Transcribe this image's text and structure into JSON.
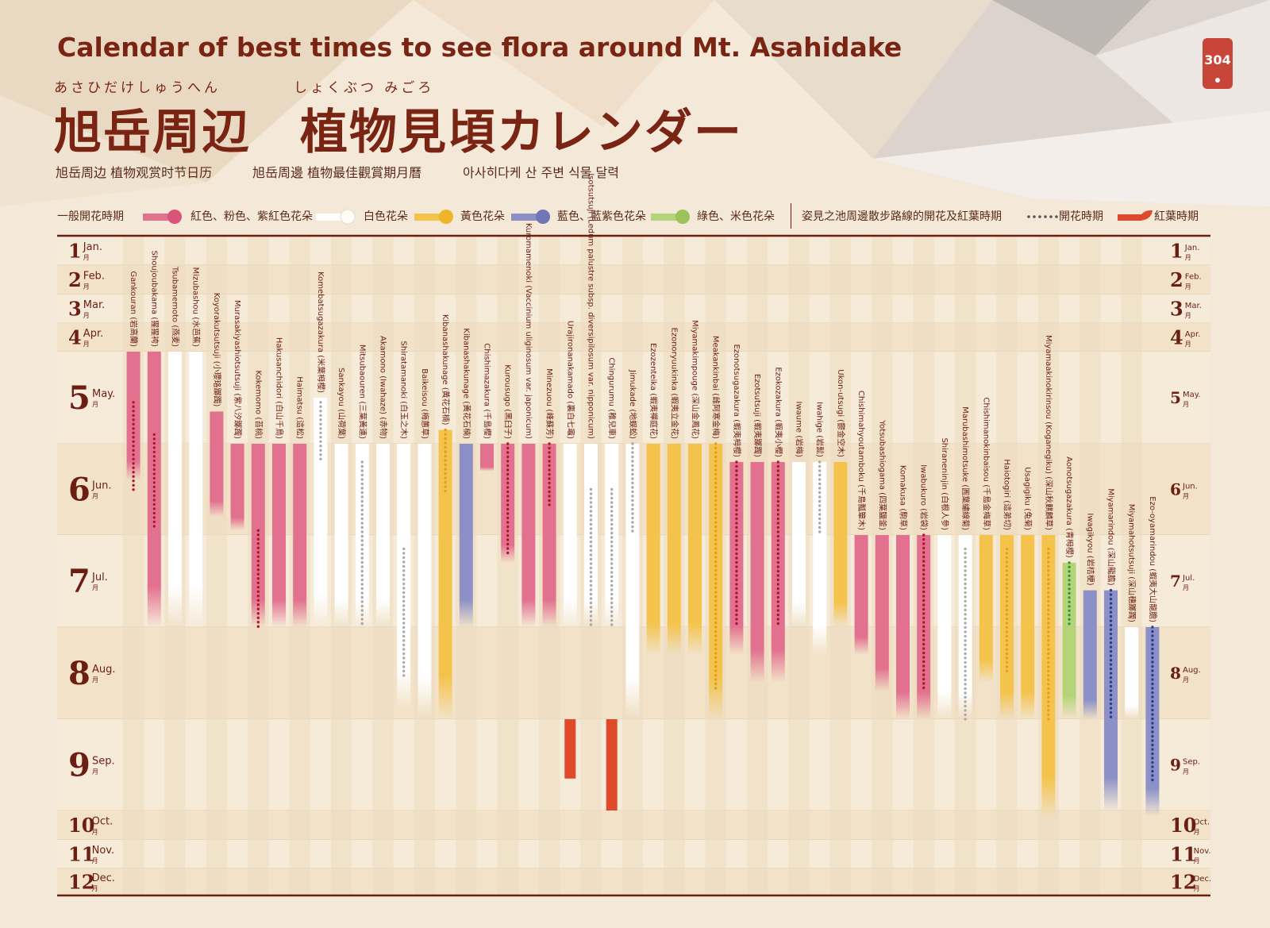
{
  "title": "Calendar of best times to see flora around Mt. Asahidake",
  "title_ruby_left": "あさひだけしゅうへん",
  "title_ruby_right": "しょくぶつ みごろ",
  "title_jp": "旭岳周辺　植物見頃カレンダー",
  "subtitles": [
    "旭岳周边 植物观赏时节日历",
    "旭岳周邊 植物最佳觀賞期月曆",
    "아사히다케 산 주변 식물 달력"
  ],
  "page_number": "304",
  "legend": {
    "general_label": "一般開花時期",
    "red": "紅色、粉色、紫紅色花朵",
    "white": "白色花朵",
    "yellow": "黃色花朵",
    "blue": "藍色、藍紫色花朵",
    "green": "綠色、米色花朵",
    "pond_label": "姿見之池周邊散步路線的開花及紅葉時期",
    "flowering": "開花時期",
    "autumn": "紅葉時期"
  },
  "colors": {
    "red": "#e2708f",
    "white": "#ffffff",
    "yellow": "#f4c34c",
    "blue": "#8c90c6",
    "green": "#b5d47a",
    "autumn": "#e04a2c",
    "dot_red": "#b0182c",
    "dot_gray": "#aaaaaa",
    "dot_yellow": "#e0a020",
    "dot_green": "#2f9a3a",
    "dot_blue": "#263f8e",
    "text": "#6b1e12"
  },
  "chart_data": {
    "type": "timeline",
    "x_unit": "month (1.0 = early January, 13.0 = end of December)",
    "months": [
      {
        "num": "1",
        "en": "Jan.",
        "jp": "月"
      },
      {
        "num": "2",
        "en": "Feb.",
        "jp": "月"
      },
      {
        "num": "3",
        "en": "Mar.",
        "jp": "月"
      },
      {
        "num": "4",
        "en": "Apr.",
        "jp": "月"
      },
      {
        "num": "5",
        "en": "May.",
        "jp": "月"
      },
      {
        "num": "6",
        "en": "Jun.",
        "jp": "月"
      },
      {
        "num": "7",
        "en": "Jul.",
        "jp": "月"
      },
      {
        "num": "8",
        "en": "Aug.",
        "jp": "月"
      },
      {
        "num": "9",
        "en": "Sep.",
        "jp": "月"
      },
      {
        "num": "10",
        "en": "Oct.",
        "jp": "月"
      },
      {
        "num": "11",
        "en": "Nov.",
        "jp": "月"
      },
      {
        "num": "12",
        "en": "Dec.",
        "jp": "月"
      }
    ],
    "series": [
      {
        "name": "Gankouran (岩高蘭)",
        "color": "red",
        "bloom": [
          5.0,
          6.4
        ],
        "dots": [
          5.55,
          6.55
        ],
        "dot_color": "red"
      },
      {
        "name": "Shoujoubakama (猩猩袴)",
        "color": "red",
        "bloom": [
          5.0,
          8.0
        ],
        "dots": [
          5.9,
          6.95
        ],
        "dot_color": "red"
      },
      {
        "name": "Tsubamemoto (燕麦)",
        "color": "white",
        "bloom": [
          5.0,
          8.0
        ]
      },
      {
        "name": "Mizubashou (水芭蕉)",
        "color": "white",
        "bloom": [
          5.0,
          8.0
        ]
      },
      {
        "name": "Koyorakutsutsuji (小瓔珞躑躅)",
        "color": "red",
        "bloom": [
          5.65,
          6.8
        ]
      },
      {
        "name": "Murasakiyashiotsutsuji (紫八汐躑躅)",
        "color": "red",
        "bloom": [
          6.0,
          6.95
        ]
      },
      {
        "name": "Kokemomo (苔桃)",
        "color": "red",
        "bloom": [
          6.0,
          8.0
        ],
        "dots": [
          6.95,
          8.0
        ],
        "dot_color": "red"
      },
      {
        "name": "Hakusanchidori (白山千鳥)",
        "color": "red",
        "bloom": [
          6.0,
          8.0
        ]
      },
      {
        "name": "Haimatsu (這松)",
        "color": "red",
        "bloom": [
          6.0,
          8.0
        ]
      },
      {
        "name": "Komebatsugazakura (米葉栂櫻)",
        "color": "white",
        "bloom": [
          5.5,
          8.0
        ],
        "dots": [
          5.55,
          6.2
        ],
        "dot_color": "gray"
      },
      {
        "name": "Sankayou (山荷葉)",
        "color": "white",
        "bloom": [
          6.0,
          8.0
        ]
      },
      {
        "name": "Mitsubaouren (三葉黃連)",
        "color": "white",
        "bloom": [
          6.0,
          8.0
        ],
        "dots": [
          6.2,
          8.0
        ],
        "dot_color": "gray"
      },
      {
        "name": "Akamono (Iwahaze) (赤物)",
        "color": "white",
        "bloom": [
          6.0,
          8.0
        ]
      },
      {
        "name": "Shiratamanoki (白玉之木)",
        "color": "white",
        "bloom": [
          6.0,
          8.9
        ],
        "dots": [
          7.15,
          8.55
        ],
        "dot_color": "gray"
      },
      {
        "name": "Baikeisou (梅蕙草)",
        "color": "white",
        "bloom": [
          6.0,
          9.0
        ]
      },
      {
        "name": "Kibanashakunage (黃花石楠)",
        "color": "yellow",
        "bloom": [
          5.85,
          9.0
        ],
        "dots": [
          5.85,
          6.55
        ],
        "dot_color": "yellow"
      },
      {
        "name": "Kibanashakunage (黃花石楠)",
        "color": "blue",
        "bloom": [
          6.0,
          8.0
        ]
      },
      {
        "name": "Chishimazakura (千島櫻)",
        "color": "red",
        "bloom": [
          6.0,
          6.3
        ]
      },
      {
        "name": "Kurousugo (黑臼子)",
        "color": "red",
        "bloom": [
          6.0,
          7.3
        ],
        "dots": [
          6.0,
          7.2
        ],
        "dot_color": "red"
      },
      {
        "name": "Kuromamenoki (Vaccinium uliginosum var. japonicum)",
        "color": "red",
        "bloom": [
          6.0,
          8.0
        ]
      },
      {
        "name": "Minezuou (峰蘇芳)",
        "color": "red",
        "bloom": [
          6.0,
          8.0
        ],
        "dots": [
          6.0,
          6.7
        ],
        "dot_color": "red"
      },
      {
        "name": "Urajironanakamado (裏白七竈)",
        "color": "white",
        "bloom": [
          6.0,
          8.0
        ],
        "autumn": [
          9.0,
          9.65
        ]
      },
      {
        "name": "Isotsutsuji (Ledum palustre subsp. diversipilosum var. nipponicum)",
        "color": "white",
        "bloom": [
          6.0,
          8.0
        ],
        "dots": [
          6.5,
          8.0
        ],
        "dot_color": "gray"
      },
      {
        "name": "Chingurumu (稚兒車)",
        "color": "white",
        "bloom": [
          6.0,
          8.0
        ],
        "dots": [
          6.5,
          8.0
        ],
        "dot_color": "gray",
        "autumn": [
          9.0,
          10.0
        ]
      },
      {
        "name": "Jimukade (地蜈蚣)",
        "color": "white",
        "bloom": [
          6.0,
          9.0
        ],
        "dots": [
          6.0,
          7.0
        ],
        "dot_color": "gray"
      },
      {
        "name": "Ezozenteika (蝦夷禪庭花)",
        "color": "yellow",
        "bloom": [
          6.0,
          8.3
        ]
      },
      {
        "name": "Ezonoryuukinka (蝦夷立金花)",
        "color": "yellow",
        "bloom": [
          6.0,
          8.3
        ]
      },
      {
        "name": "Miyamakimpouge (深山金鳳花)",
        "color": "yellow",
        "bloom": [
          6.0,
          8.3
        ]
      },
      {
        "name": "Meakankinbai (雌阿寒金梅)",
        "color": "yellow",
        "bloom": [
          6.0,
          9.0
        ],
        "dots": [
          6.0,
          8.7
        ],
        "dot_color": "yellow"
      },
      {
        "name": "Ezonotsugazakura (蝦夷栂櫻)",
        "color": "red",
        "bloom": [
          6.2,
          8.3
        ],
        "dots": [
          6.2,
          8.0
        ],
        "dot_color": "red"
      },
      {
        "name": "Ezotsutsuji (蝦夷躑躅)",
        "color": "red",
        "bloom": [
          6.2,
          8.6
        ]
      },
      {
        "name": "Ezokozakura (蝦夷小櫻)",
        "color": "red",
        "bloom": [
          6.2,
          8.6
        ],
        "dots": [
          6.2,
          8.0
        ],
        "dot_color": "red"
      },
      {
        "name": "Iwaume (岩梅)",
        "color": "white",
        "bloom": [
          6.2,
          8.0
        ]
      },
      {
        "name": "Iwahige (岩髭)",
        "color": "white",
        "bloom": [
          6.2,
          8.3
        ],
        "dots": [
          6.2,
          7.0
        ],
        "dot_color": "gray"
      },
      {
        "name": "Ukon-utsugi (鬱金空木)",
        "color": "yellow",
        "bloom": [
          6.2,
          8.0
        ]
      },
      {
        "name": "Chishimahyoutamboku (千島瓢簞木)",
        "color": "red",
        "bloom": [
          7.0,
          8.3
        ]
      },
      {
        "name": "Yotsubashiogama (四葉鹽釜)",
        "color": "red",
        "bloom": [
          7.0,
          8.7
        ]
      },
      {
        "name": "Komakusa (駒草)",
        "color": "red",
        "bloom": [
          7.0,
          9.0
        ]
      },
      {
        "name": "Iwabukuro (岩袋)",
        "color": "red",
        "bloom": [
          7.0,
          9.0
        ],
        "dots": [
          7.0,
          8.7
        ],
        "dot_color": "red"
      },
      {
        "name": "Shiraneninjin (白根人參)",
        "color": "white",
        "bloom": [
          7.0,
          9.0
        ]
      },
      {
        "name": "Marubashimotsuke (圓葉繡線菊)",
        "color": "white",
        "bloom": [
          7.0,
          9.0
        ],
        "dots": [
          7.15,
          9.0
        ],
        "dot_color": "gray"
      },
      {
        "name": "Chishimanokinbaisou (千島金梅草)",
        "color": "yellow",
        "bloom": [
          7.0,
          8.6
        ]
      },
      {
        "name": "Haiotogiri (這弟切)",
        "color": "yellow",
        "bloom": [
          7.0,
          9.0
        ],
        "dots": [
          7.15,
          8.5
        ],
        "dot_color": "yellow"
      },
      {
        "name": "Usagigiku (兔菊)",
        "color": "yellow",
        "bloom": [
          7.0,
          9.0
        ]
      },
      {
        "name": "Miyamaakinokirinsou (Koganegiku) (深山秋麒麟草)",
        "color": "yellow",
        "bloom": [
          7.0,
          10.3
        ],
        "dots": [
          7.15,
          9.0
        ],
        "dot_color": "yellow"
      },
      {
        "name": "Aonotsugazakura (青栂櫻)",
        "color": "green",
        "bloom": [
          7.3,
          9.0
        ],
        "dots": [
          7.3,
          8.0
        ],
        "dot_color": "green"
      },
      {
        "name": "Iwagikyou (岩桔梗)",
        "color": "blue",
        "bloom": [
          7.6,
          9.0
        ]
      },
      {
        "name": "Miyamarindou (深山龍膽)",
        "color": "blue",
        "bloom": [
          7.6,
          10.0
        ],
        "dots": [
          7.6,
          9.0
        ],
        "dot_color": "blue"
      },
      {
        "name": "Miyamahotsutsuji (深山穗躑躅)",
        "color": "white",
        "bloom": [
          8.0,
          9.0
        ]
      },
      {
        "name": "Ezo-oyamarindou (蝦夷大山龍膽)",
        "color": "blue",
        "bloom": [
          8.0,
          10.2
        ],
        "dots": [
          8.0,
          9.7
        ],
        "dot_color": "blue"
      }
    ]
  }
}
